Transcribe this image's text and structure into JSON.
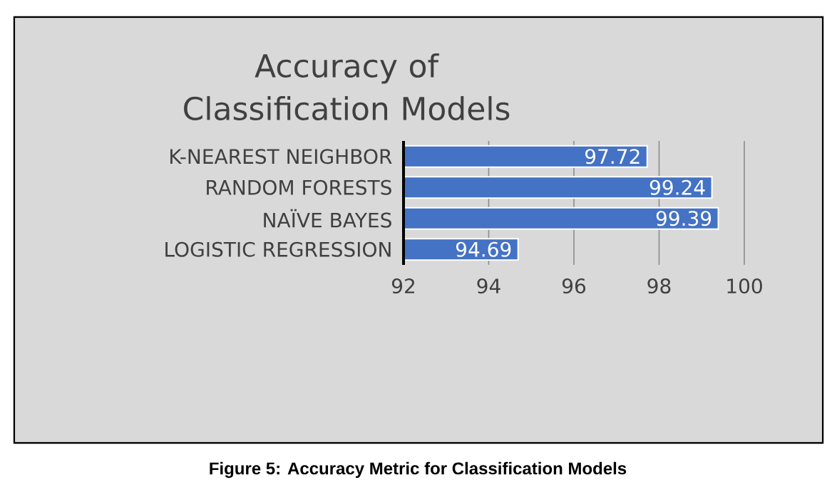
{
  "chart_data": {
    "type": "bar",
    "orientation": "horizontal",
    "title": "Accuracy of Classification Models",
    "categories": [
      "K-NEAREST NEIGHBOR",
      "RANDOM FORESTS",
      "NAÏVE BAYES",
      "LOGISTIC REGRESSION"
    ],
    "values": [
      97.72,
      99.24,
      99.39,
      94.69
    ],
    "color": "#4472c4",
    "xlim": [
      92,
      100
    ],
    "xticks": [
      92,
      94,
      96,
      98,
      100
    ],
    "grid": "x",
    "data_labels": true,
    "annotations": [
      "Figure 5: Accuracy Metric for Classification Models"
    ]
  }
}
